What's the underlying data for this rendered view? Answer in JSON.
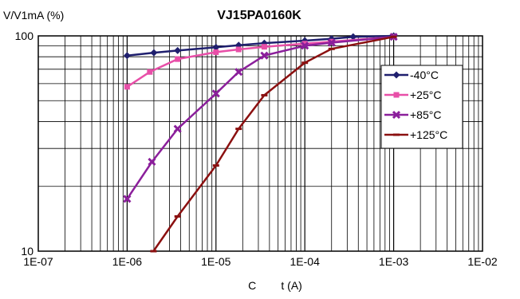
{
  "chart_data": {
    "type": "line",
    "title": "VJ15PA0160K",
    "ylabel": "V/V1mA (%)",
    "xlabel": "C        t (A)",
    "x_scale": "log",
    "y_scale": "log",
    "xlim": [
      1e-07,
      0.01
    ],
    "ylim": [
      10,
      100
    ],
    "x_ticks": [
      "1E-07",
      "1E-06",
      "1E-05",
      "1E-04",
      "1E-03",
      "1E-02"
    ],
    "y_ticks": [
      "100",
      "10"
    ],
    "grid": true,
    "legend_position": "right",
    "series": [
      {
        "name": "-40°C",
        "color": "#1f1f6e",
        "marker": "diamond",
        "x": [
          1e-06,
          2e-06,
          3.7e-06,
          1e-05,
          1.8e-05,
          3.5e-05,
          0.0001,
          0.0002,
          0.00035,
          0.001
        ],
        "y": [
          81,
          83.5,
          85.5,
          88.5,
          90.5,
          92.5,
          95,
          97,
          99,
          100
        ]
      },
      {
        "name": "+25°C",
        "color": "#e84fa8",
        "marker": "square",
        "x": [
          1e-06,
          1.8e-06,
          3.7e-06,
          1e-05,
          1.8e-05,
          3.5e-05,
          0.0001,
          0.0002,
          0.001
        ],
        "y": [
          58,
          68,
          78,
          84,
          86.5,
          89,
          92,
          94,
          99
        ]
      },
      {
        "name": "+85°C",
        "color": "#8b1f9b",
        "marker": "x",
        "x": [
          1e-06,
          1.9e-06,
          3.7e-06,
          1e-05,
          1.8e-05,
          3.5e-05,
          0.0001,
          0.0002,
          0.001
        ],
        "y": [
          17.5,
          26,
          37,
          54,
          68,
          81,
          90,
          93,
          99
        ]
      },
      {
        "name": "+125°C",
        "color": "#8b1010",
        "marker": "dash",
        "x": [
          1.98e-06,
          3.7e-06,
          1e-05,
          1.8e-05,
          3.5e-05,
          0.0001,
          0.0002,
          0.001
        ],
        "y": [
          10,
          14.5,
          25,
          37,
          53,
          75,
          87,
          99
        ]
      }
    ]
  }
}
